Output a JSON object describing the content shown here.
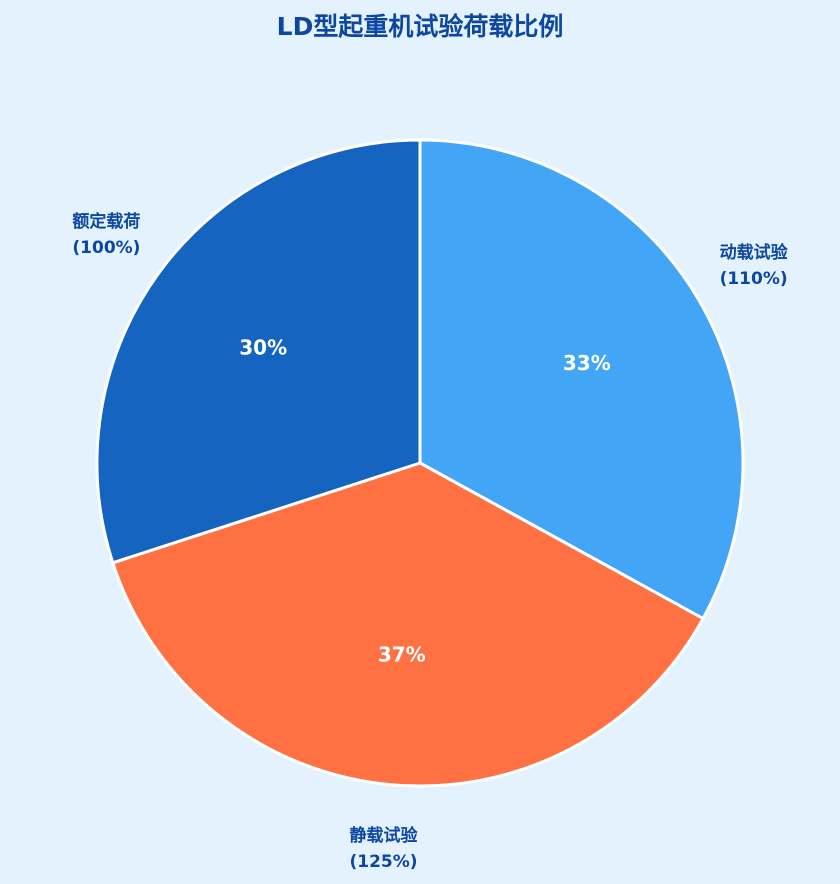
{
  "chart_data": {
    "type": "pie",
    "title": "LD型起重机试验荷载比例",
    "categories": [
      "动载试验\n(110%)",
      "静载试验\n(125%)",
      "额定载荷\n(100%)"
    ],
    "values": [
      33,
      37,
      30
    ],
    "value_labels": [
      "33%",
      "37%",
      "30%"
    ],
    "colors": [
      "#42a5f5",
      "#ff7043",
      "#1565c0"
    ]
  }
}
